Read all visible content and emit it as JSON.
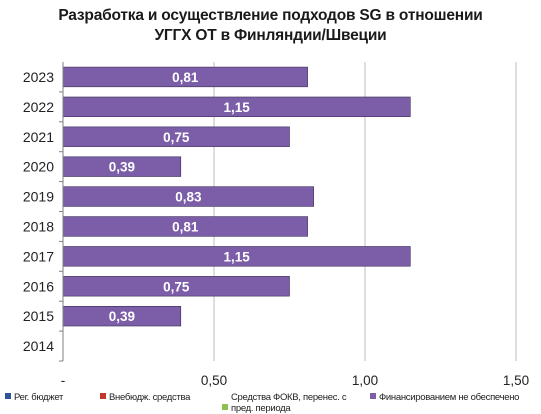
{
  "chart_data": {
    "type": "bar",
    "orientation": "horizontal",
    "title_lines": [
      "Разработка и осуществление подходов SG в отношении",
      "УГГХ ОТ в Финляндии/Швеции"
    ],
    "categories": [
      "2014",
      "2015",
      "2016",
      "2017",
      "2018",
      "2019",
      "2020",
      "2021",
      "2022",
      "2023"
    ],
    "series": [
      {
        "name": "Рег. бюджет",
        "color": "#2e5597",
        "values": [
          0,
          0,
          0,
          0,
          0,
          0,
          0,
          0,
          0,
          0
        ]
      },
      {
        "name": "Внебюдж. средства",
        "color": "#c0392b",
        "values": [
          0,
          0,
          0,
          0,
          0,
          0,
          0,
          0,
          0,
          0
        ]
      },
      {
        "name": "Средства ФОКВ, перенес. с пред. периода",
        "color": "#8cc152",
        "values": [
          0,
          0,
          0,
          0,
          0,
          0,
          0,
          0,
          0,
          0
        ]
      },
      {
        "name": "Финансированием не обеспечено",
        "color": "#7b5ea7",
        "values": [
          null,
          0.39,
          0.75,
          1.15,
          0.81,
          0.83,
          0.39,
          0.75,
          1.15,
          0.81
        ]
      }
    ],
    "data_labels": [
      null,
      "0,39",
      "0,75",
      "1,15",
      "0,81",
      "0,83",
      "0,39",
      "0,75",
      "1,15",
      "0,81"
    ],
    "xlim": [
      0,
      1.5
    ],
    "x_ticks": [
      0,
      0.5,
      1.0,
      1.5
    ],
    "x_tick_labels": [
      "-",
      "0,50",
      "1,00",
      "1,50"
    ],
    "grid": true,
    "legend_position": "bottom"
  }
}
